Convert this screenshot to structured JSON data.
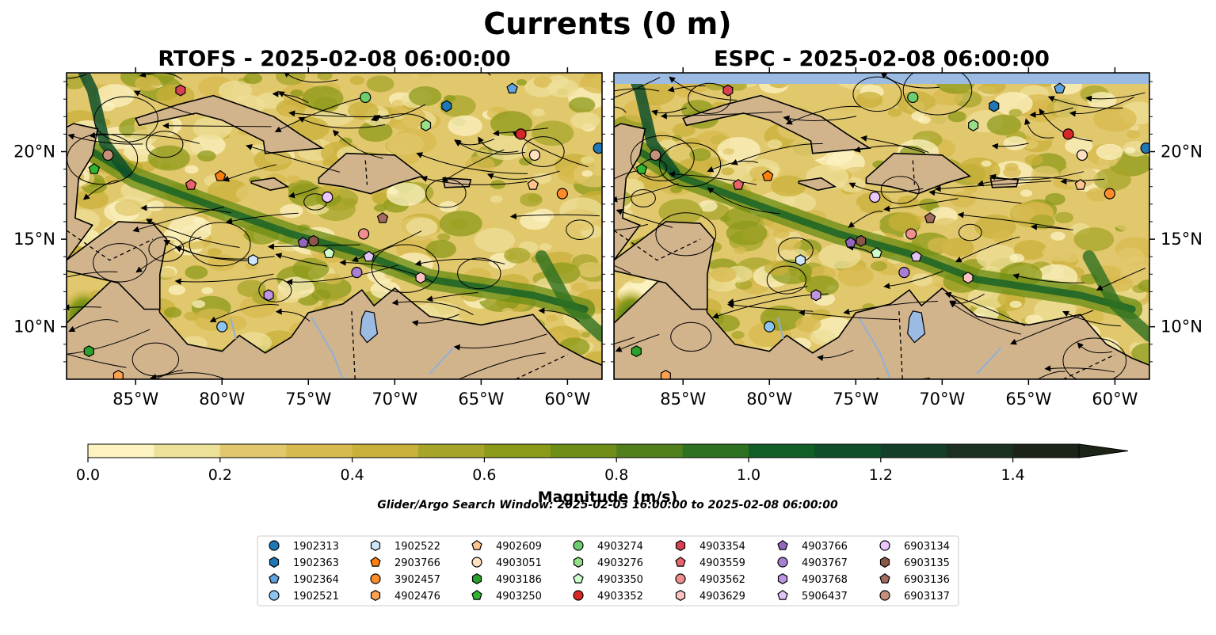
{
  "figure": {
    "title": "Currents (0 m)",
    "search_window": "Glider/Argo Search Window: 2025-02-03 16:00:00 to 2025-02-08 06:00:00"
  },
  "chart_data": {
    "type": "heatmap",
    "variable": "current magnitude with streamlines",
    "panels": [
      {
        "title": "RTOFS - 2025-02-08 06:00:00",
        "model": "RTOFS"
      },
      {
        "title": "ESPC - 2025-02-08 06:00:00",
        "model": "ESPC"
      }
    ],
    "xlim": [
      -89,
      -58
    ],
    "ylim": [
      7,
      24.5
    ],
    "xticks": [
      -85,
      -80,
      -75,
      -70,
      -65,
      -60
    ],
    "xtick_labels": [
      "85°W",
      "80°W",
      "75°W",
      "70°W",
      "65°W",
      "60°W"
    ],
    "yticks": [
      10,
      15,
      20
    ],
    "ytick_labels": [
      "10°N",
      "15°N",
      "20°N"
    ],
    "colorbar": {
      "label": "Magnitude (m/s)",
      "min": 0,
      "max": 1.5,
      "step": 0.1,
      "extend": "max",
      "ticks": [
        0.0,
        0.2,
        0.4,
        0.6,
        0.8,
        1.0,
        1.2,
        1.4
      ],
      "tick_labels": [
        "0.0",
        "0.2",
        "0.4",
        "0.6",
        "0.8",
        "1.0",
        "1.2",
        "1.4"
      ],
      "colors": [
        "#fcf3c1",
        "#ede099",
        "#e1c86d",
        "#d8b94f",
        "#c9b03a",
        "#a7a529",
        "#8c9a19",
        "#6f8e17",
        "#517f1b",
        "#2e7120",
        "#115f27",
        "#0e4f2a",
        "#153e28",
        "#1c3020",
        "#1c2418"
      ]
    },
    "floats": [
      {
        "id": "1902313",
        "lon": -58.2,
        "lat": 20.2,
        "color": "#1f77b4",
        "marker": "circle"
      },
      {
        "id": "1902363",
        "lon": -67.0,
        "lat": 22.6,
        "color": "#1f77b4",
        "marker": "hexagon"
      },
      {
        "id": "1902364",
        "lon": -63.2,
        "lat": 23.6,
        "color": "#5fa2dd",
        "marker": "pentagon"
      },
      {
        "id": "1902521",
        "lon": -80.0,
        "lat": 10.0,
        "color": "#8ec5f0",
        "marker": "circle"
      },
      {
        "id": "1902522",
        "lon": -78.2,
        "lat": 13.8,
        "color": "#cde6fb",
        "marker": "hexagon"
      },
      {
        "id": "2903766",
        "lon": -80.1,
        "lat": 18.6,
        "color": "#ff7f0e",
        "marker": "pentagon"
      },
      {
        "id": "3902457",
        "lon": -60.3,
        "lat": 17.6,
        "color": "#ff8c29",
        "marker": "circle"
      },
      {
        "id": "4902476",
        "lon": -86.0,
        "lat": 7.2,
        "color": "#ffa24f",
        "marker": "hexagon"
      },
      {
        "id": "4902609",
        "lon": -62.0,
        "lat": 18.1,
        "color": "#ffc48d",
        "marker": "pentagon"
      },
      {
        "id": "4903051",
        "lon": -61.9,
        "lat": 19.8,
        "color": "#ffe1c2",
        "marker": "circle"
      },
      {
        "id": "4903186",
        "lon": -87.7,
        "lat": 8.6,
        "color": "#2ca02c",
        "marker": "hexagon"
      },
      {
        "id": "4903250",
        "lon": -87.4,
        "lat": 19.0,
        "color": "#31b531",
        "marker": "pentagon"
      },
      {
        "id": "4903274",
        "lon": -71.7,
        "lat": 23.1,
        "color": "#6cce6c",
        "marker": "circle"
      },
      {
        "id": "4903276",
        "lon": -68.2,
        "lat": 21.5,
        "color": "#98df8a",
        "marker": "hexagon"
      },
      {
        "id": "4903350",
        "lon": -73.8,
        "lat": 14.2,
        "color": "#ccffcc",
        "marker": "pentagon"
      },
      {
        "id": "4903352",
        "lon": -62.7,
        "lat": 21.0,
        "color": "#d62728",
        "marker": "circle"
      },
      {
        "id": "4903354",
        "lon": -82.4,
        "lat": 23.5,
        "color": "#d94050",
        "marker": "hexagon"
      },
      {
        "id": "4903559",
        "lon": -81.8,
        "lat": 18.1,
        "color": "#e8636b",
        "marker": "pentagon"
      },
      {
        "id": "4903562",
        "lon": -71.8,
        "lat": 15.3,
        "color": "#f28e8e",
        "marker": "circle"
      },
      {
        "id": "4903629",
        "lon": -68.5,
        "lat": 12.8,
        "color": "#ffc2c2",
        "marker": "hexagon"
      },
      {
        "id": "4903766",
        "lon": -75.3,
        "lat": 14.8,
        "color": "#9467bd",
        "marker": "pentagon"
      },
      {
        "id": "4903767",
        "lon": -72.2,
        "lat": 13.1,
        "color": "#a97fd3",
        "marker": "circle"
      },
      {
        "id": "4903768",
        "lon": -77.3,
        "lat": 11.8,
        "color": "#bd95e0",
        "marker": "hexagon"
      },
      {
        "id": "5906437",
        "lon": -71.5,
        "lat": 14.0,
        "color": "#e2c3f5",
        "marker": "pentagon"
      },
      {
        "id": "6903134",
        "lon": -73.9,
        "lat": 17.4,
        "color": "#ebc6ff",
        "marker": "circle"
      },
      {
        "id": "6903135",
        "lon": -74.7,
        "lat": 14.9,
        "color": "#8c564b",
        "marker": "hexagon"
      },
      {
        "id": "6903136",
        "lon": -70.7,
        "lat": 16.2,
        "color": "#a36c5f",
        "marker": "pentagon"
      },
      {
        "id": "6903137",
        "lon": -86.6,
        "lat": 19.8,
        "color": "#c4907b",
        "marker": "circle"
      }
    ]
  }
}
